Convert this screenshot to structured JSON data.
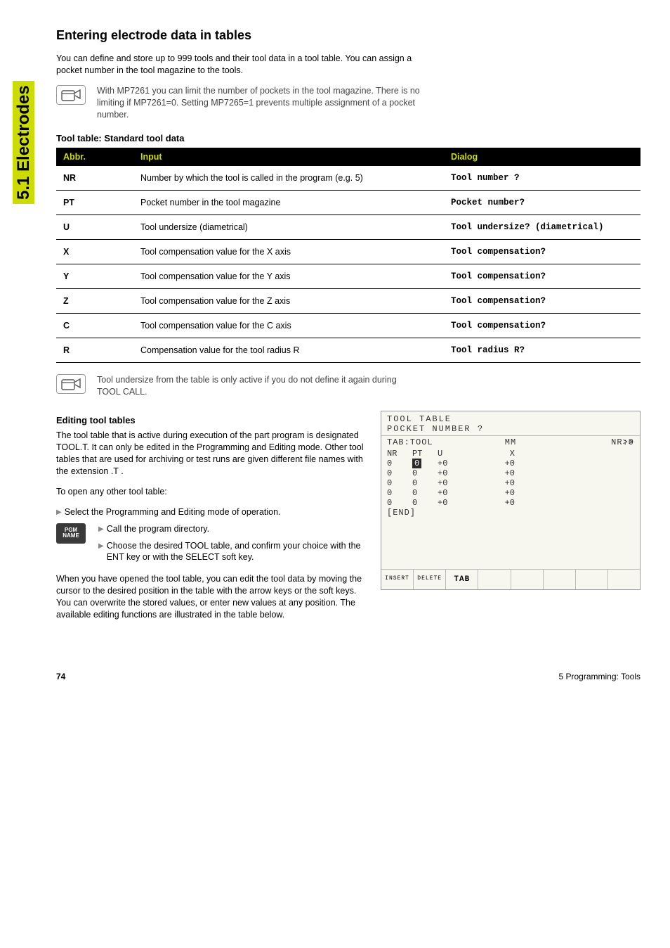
{
  "sideTab": {
    "number": "5.",
    "rest": "1 Electrodes"
  },
  "sectionTitle": "Entering electrode data in tables",
  "intro": "You can define and store up to 999 tools and their tool data in a tool table. You can assign a pocket number in the tool magazine to the tools.",
  "note1": "With MP7261 you can limit the number of pockets in the tool magazine. There is no limiting if MP7261=0. Setting MP7265=1 prevents multiple assignment of a pocket number.",
  "tableCaption": "Tool table: Standard tool data",
  "tableHeaders": {
    "abbr": "Abbr.",
    "input": "Input",
    "dialog": "Dialog"
  },
  "tableRows": [
    {
      "abbr": "NR",
      "input": "Number by which the tool is called in the program (e.g. 5)",
      "dialog": "Tool number ?"
    },
    {
      "abbr": "PT",
      "input": "Pocket number in the tool magazine",
      "dialog": "Pocket number?"
    },
    {
      "abbr": "U",
      "input": "Tool undersize (diametrical)",
      "dialog": "Tool undersize? (diametrical)"
    },
    {
      "abbr": "X",
      "input": "Tool compensation value for the X axis",
      "dialog": "Tool compensation?"
    },
    {
      "abbr": "Y",
      "input": "Tool compensation value for the Y axis",
      "dialog": "Tool compensation?"
    },
    {
      "abbr": "Z",
      "input": "Tool compensation value for the Z axis",
      "dialog": "Tool compensation?"
    },
    {
      "abbr": "C",
      "input": "Tool compensation value for the C axis",
      "dialog": "Tool compensation?"
    },
    {
      "abbr": "R",
      "input": "Compensation value for the tool radius R",
      "dialog": "Tool radius R?"
    }
  ],
  "note2": "Tool undersize from the table is only active if you do not define it again during TOOL CALL.",
  "editHeading": "Editing tool tables",
  "editPara1": "The tool table that is active during execution of the part program is designated TOOL.T. It can only be edited in the Programming and Editing mode. Other tool tables that are used for archiving or test runs are given different file names with the extension .T .",
  "editPara2": "To open any other tool table:",
  "step1": "Select the Programming and Editing mode of operation.",
  "keycap": "PGM\nNAME",
  "keyStep1": "Call the program directory.",
  "keyStep2": "Choose the desired TOOL table, and confirm your choice with the ENT key or with the SELECT soft key.",
  "editPara3": "When you have opened the tool table, you can edit the tool data by moving the cursor to the desired position in the table with the arrow keys or the soft keys. You can overwrite the stored values, or enter new values at any position. The available editing functions are illustrated in the table below.",
  "screen": {
    "title": "TOOL TABLE",
    "subtitle": "POCKET NUMBER ?",
    "meta": {
      "tab": "TAB:TOOL",
      "unit": "MM",
      "nr": "NR:0",
      "arrows": ">>"
    },
    "columns": [
      "NR",
      "PT",
      "U",
      "X"
    ],
    "rows": [
      {
        "nr": "0",
        "pt": "0",
        "pt_hl": true,
        "u": "+0",
        "x": "+0"
      },
      {
        "nr": "0",
        "pt": "0",
        "pt_hl": false,
        "u": "+0",
        "x": "+0"
      },
      {
        "nr": "0",
        "pt": "0",
        "pt_hl": false,
        "u": "+0",
        "x": "+0"
      },
      {
        "nr": "0",
        "pt": "0",
        "pt_hl": false,
        "u": "+0",
        "x": "+0"
      },
      {
        "nr": "0",
        "pt": "0",
        "pt_hl": false,
        "u": "+0",
        "x": "+0"
      }
    ],
    "end": "[END]",
    "softkeys": [
      "INSERT",
      "DELETE",
      "TAB",
      "",
      "",
      "",
      "",
      ""
    ]
  },
  "footer": {
    "page": "74",
    "chapter": "5 Programming: Tools"
  },
  "colors": {
    "accent": "#ccdc00",
    "tableHeaderBg": "#000000",
    "tableHeaderFg": "#ccdc00",
    "keycapBg": "#3a3a3a",
    "screenBg": "#f7f7f0"
  }
}
